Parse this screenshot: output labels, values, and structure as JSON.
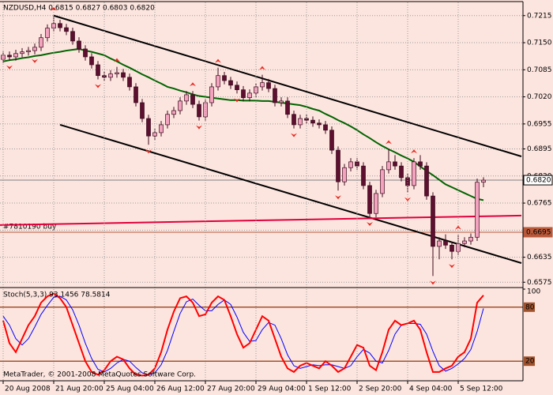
{
  "chart_data": [
    {
      "type": "candlestick",
      "title": "NZDUSD,H4  0.6815 0.6827 0.6803 0.6820",
      "x_labels": [
        {
          "index": 0,
          "label": "20 Aug 2008"
        },
        {
          "index": 8,
          "label": "21 Aug 20:00"
        },
        {
          "index": 16,
          "label": "25 Aug 04:00"
        },
        {
          "index": 24,
          "label": "26 Aug 12:00"
        },
        {
          "index": 32,
          "label": "27 Aug 20:00"
        },
        {
          "index": 40,
          "label": "29 Aug 04:00"
        },
        {
          "index": 48,
          "label": "1 Sep 12:00"
        },
        {
          "index": 56,
          "label": "2 Sep 20:00"
        },
        {
          "index": 64,
          "label": "4 Sep 04:00"
        },
        {
          "index": 72,
          "label": "5 Sep 12:00"
        }
      ],
      "open": [
        0.711,
        0.712,
        0.7116,
        0.7124,
        0.7128,
        0.7131,
        0.7139,
        0.7162,
        0.7185,
        0.7196,
        0.7186,
        0.7177,
        0.7154,
        0.7135,
        0.7116,
        0.7097,
        0.7071,
        0.7067,
        0.7075,
        0.7078,
        0.7067,
        0.7044,
        0.7006,
        0.6968,
        0.6926,
        0.6934,
        0.6953,
        0.6978,
        0.6987,
        0.701,
        0.7025,
        0.7002,
        0.6972,
        0.7006,
        0.7044,
        0.7071,
        0.7059,
        0.7048,
        0.7037,
        0.7018,
        0.7029,
        0.7044,
        0.7054,
        0.704,
        0.7006,
        0.701,
        0.6978,
        0.6953,
        0.6968,
        0.6964,
        0.6957,
        0.6953,
        0.694,
        0.6892,
        0.6816,
        0.685,
        0.6864,
        0.6854,
        0.6807,
        0.674,
        0.6788,
        0.6845,
        0.6864,
        0.6854,
        0.6826,
        0.6807,
        0.6864,
        0.6854,
        0.6782,
        0.6661,
        0.6674,
        0.6664,
        0.6649,
        0.6668,
        0.6674,
        0.6683,
        0.6815
      ],
      "high": [
        0.7129,
        0.7129,
        0.7133,
        0.7137,
        0.714,
        0.7148,
        0.7171,
        0.7194,
        0.7215,
        0.7205,
        0.7195,
        0.7186,
        0.7163,
        0.7144,
        0.7125,
        0.7106,
        0.708,
        0.7084,
        0.7092,
        0.7087,
        0.7076,
        0.7053,
        0.7015,
        0.6977,
        0.6943,
        0.6962,
        0.6987,
        0.6996,
        0.7019,
        0.7034,
        0.7034,
        0.7011,
        0.7015,
        0.7053,
        0.709,
        0.708,
        0.7068,
        0.7057,
        0.7046,
        0.7038,
        0.7053,
        0.7073,
        0.7063,
        0.7049,
        0.7019,
        0.7019,
        0.6987,
        0.6977,
        0.6977,
        0.6973,
        0.6966,
        0.6962,
        0.6949,
        0.6901,
        0.6859,
        0.6873,
        0.6873,
        0.6863,
        0.6816,
        0.6797,
        0.6854,
        0.6895,
        0.688,
        0.6863,
        0.6835,
        0.6873,
        0.688,
        0.6863,
        0.6791,
        0.6683,
        0.669,
        0.6673,
        0.669,
        0.6683,
        0.6692,
        0.6824,
        0.6827
      ],
      "low": [
        0.7101,
        0.7107,
        0.7107,
        0.7115,
        0.7119,
        0.7122,
        0.713,
        0.7153,
        0.7176,
        0.7177,
        0.7168,
        0.7145,
        0.7126,
        0.7107,
        0.7088,
        0.7062,
        0.7058,
        0.7058,
        0.7066,
        0.7058,
        0.7035,
        0.6997,
        0.6959,
        0.6905,
        0.6917,
        0.6925,
        0.6944,
        0.6969,
        0.6978,
        0.7001,
        0.6993,
        0.6963,
        0.6963,
        0.6997,
        0.7035,
        0.705,
        0.7039,
        0.7028,
        0.7009,
        0.7009,
        0.702,
        0.7035,
        0.7031,
        0.6997,
        0.6997,
        0.6969,
        0.6944,
        0.6944,
        0.6955,
        0.6948,
        0.6944,
        0.6931,
        0.6883,
        0.6795,
        0.6807,
        0.6841,
        0.6845,
        0.6798,
        0.6731,
        0.6731,
        0.6779,
        0.6836,
        0.6845,
        0.6817,
        0.679,
        0.6798,
        0.6845,
        0.6773,
        0.659,
        0.663,
        0.6655,
        0.663,
        0.664,
        0.6659,
        0.6665,
        0.6674,
        0.6803
      ],
      "close": [
        0.712,
        0.7116,
        0.7124,
        0.7128,
        0.7131,
        0.7139,
        0.7162,
        0.7185,
        0.7196,
        0.7186,
        0.7177,
        0.7154,
        0.7135,
        0.7116,
        0.7097,
        0.7071,
        0.7067,
        0.7075,
        0.7078,
        0.7067,
        0.7044,
        0.7006,
        0.6968,
        0.6926,
        0.6934,
        0.6953,
        0.6978,
        0.6987,
        0.701,
        0.7025,
        0.7002,
        0.6972,
        0.7006,
        0.7044,
        0.7071,
        0.7059,
        0.7048,
        0.7037,
        0.7018,
        0.7029,
        0.7044,
        0.7054,
        0.704,
        0.7006,
        0.701,
        0.6978,
        0.6953,
        0.6968,
        0.6964,
        0.6957,
        0.6953,
        0.694,
        0.6892,
        0.6816,
        0.685,
        0.6864,
        0.6854,
        0.6807,
        0.674,
        0.6788,
        0.6845,
        0.6864,
        0.6854,
        0.6826,
        0.6807,
        0.6864,
        0.6854,
        0.6782,
        0.6661,
        0.6674,
        0.6664,
        0.6649,
        0.6668,
        0.6674,
        0.6683,
        0.6815,
        0.682
      ],
      "bull_color": "#f4a3bf",
      "bear_color": "#5c0f2e",
      "wick_color": "#3a0a1e",
      "series": [
        {
          "color": "#006400",
          "values": [
            0.7105,
            0.7108,
            0.711,
            0.7113,
            0.7115,
            0.7118,
            0.712,
            0.7123,
            0.7126,
            0.7128,
            0.7131,
            0.7133,
            0.7135,
            0.7131,
            0.7128,
            0.7124,
            0.712,
            0.7112,
            0.7105,
            0.7097,
            0.709,
            0.7082,
            0.7074,
            0.7067,
            0.7059,
            0.7052,
            0.7044,
            0.704,
            0.7035,
            0.7031,
            0.7026,
            0.7022,
            0.702,
            0.7018,
            0.7016,
            0.7014,
            0.7012,
            0.7012,
            0.7011,
            0.7011,
            0.7011,
            0.701,
            0.701,
            0.7008,
            0.7006,
            0.7004,
            0.7002,
            0.7,
            0.6996,
            0.6991,
            0.6987,
            0.6979,
            0.6972,
            0.6964,
            0.6957,
            0.6949,
            0.694,
            0.693,
            0.6921,
            0.6911,
            0.6902,
            0.6894,
            0.6887,
            0.6879,
            0.6872,
            0.6864,
            0.6853,
            0.6842,
            0.6832,
            0.6821,
            0.681,
            0.6803,
            0.6796,
            0.6789,
            0.6782,
            0.6775,
            0.6772
          ]
        }
      ],
      "fractals": {
        "color": "#e8281e",
        "up": [
          8,
          18,
          30,
          34,
          41,
          61,
          65,
          72
        ],
        "down": [
          1,
          5,
          15,
          23,
          31,
          37,
          46,
          53,
          58,
          64,
          68,
          71
        ]
      },
      "trendlines": [
        {
          "color": "#000000",
          "from": [
            8,
            0.7215
          ],
          "to": [
            82,
            0.6877
          ]
        },
        {
          "color": "#000000",
          "from": [
            9,
            0.6953
          ],
          "to": [
            82,
            0.6621
          ]
        },
        {
          "color": "#e0003c",
          "from": [
            -1,
            0.6712
          ],
          "to": [
            82,
            0.6735
          ]
        }
      ],
      "levels": [
        {
          "price": 0.682,
          "label": "0.6820",
          "color": "#808080"
        },
        {
          "price": 0.6695,
          "label": "0.6695",
          "text": "#7810190 buy",
          "color": "#b8583a"
        }
      ],
      "ylim": [
        0.6566,
        0.7243
      ],
      "yticks": [
        0.7215,
        {
          "value": 0.715,
          "label": "0.7150"
        },
        0.7085,
        {
          "value": 0.702,
          "label": "0.7020"
        },
        0.6955,
        0.6895,
        {
          "value": 0.683,
          "label": "0.6830"
        },
        0.6765,
        {
          "value": 0.67,
          "label": "0.6700"
        },
        0.6635,
        0.6575
      ],
      "grid": true
    },
    {
      "type": "stochastic",
      "title": "Stoch(5,3,3) 93.1456 78.5814",
      "ylim": [
        0,
        100
      ],
      "yticks": [
        100
      ],
      "levels": [
        80,
        20
      ],
      "level_color": "#a0522d",
      "series": [
        {
          "color": "#ff0000",
          "values": [
            65,
            40,
            30,
            45,
            60,
            70,
            85,
            92,
            95,
            90,
            80,
            60,
            40,
            20,
            8,
            5,
            10,
            20,
            25,
            22,
            12,
            5,
            4,
            5,
            12,
            30,
            55,
            75,
            90,
            92,
            85,
            70,
            72,
            85,
            92,
            88,
            70,
            50,
            35,
            40,
            55,
            70,
            65,
            45,
            25,
            12,
            8,
            15,
            18,
            15,
            12,
            20,
            15,
            8,
            12,
            25,
            38,
            35,
            15,
            10,
            30,
            55,
            65,
            60,
            62,
            65,
            55,
            30,
            8,
            8,
            12,
            15,
            25,
            30,
            45,
            85,
            93.1456
          ]
        },
        {
          "color": "#0000ff",
          "values": [
            70,
            60,
            45,
            38,
            45,
            58,
            72,
            82,
            91,
            92,
            88,
            77,
            60,
            40,
            23,
            11,
            8,
            12,
            18,
            22,
            20,
            13,
            7,
            5,
            7,
            16,
            32,
            53,
            73,
            86,
            89,
            82,
            76,
            76,
            83,
            88,
            83,
            69,
            52,
            42,
            43,
            55,
            63,
            60,
            45,
            27,
            15,
            12,
            14,
            16,
            15,
            16,
            16,
            14,
            12,
            15,
            25,
            33,
            29,
            20,
            18,
            32,
            50,
            60,
            62,
            62,
            61,
            50,
            31,
            15,
            9,
            12,
            17,
            23,
            33,
            53,
            78.5814
          ]
        }
      ]
    }
  ],
  "footer": "MetaTrader, © 2001-2008 MetaQuotes Software Corp."
}
